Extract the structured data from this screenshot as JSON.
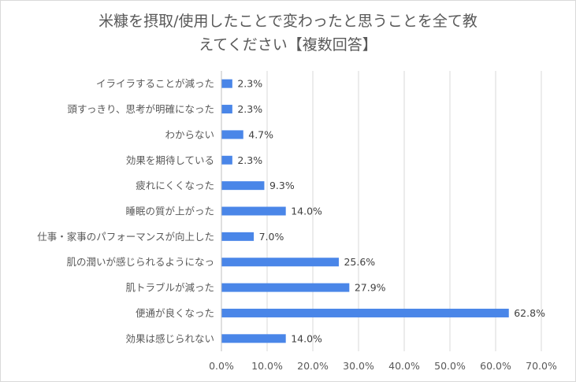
{
  "chart_data": {
    "type": "bar",
    "orientation": "horizontal",
    "title_line1": "米糠を摂取/使用したことで変わったと思うことを全て教",
    "title_line2": "えてください【複数回答】",
    "categories": [
      "イライラすることが減った",
      "頭すっきり、思考が明確になった",
      "わからない",
      "効果を期待している",
      "疲れにくくなった",
      "睡眠の質が上がった",
      "仕事・家事のパフォーマンスが向上した",
      "肌の潤いが感じられるようになっ",
      "肌トラブルが減った",
      "便通が良くなった",
      "効果は感じられない"
    ],
    "values": [
      2.3,
      2.3,
      4.7,
      2.3,
      9.3,
      14.0,
      7.0,
      25.6,
      27.9,
      62.8,
      14.0
    ],
    "value_labels": [
      "2.3%",
      "2.3%",
      "4.7%",
      "2.3%",
      "9.3%",
      "14.0%",
      "7.0%",
      "25.6%",
      "27.9%",
      "62.8%",
      "14.0%"
    ],
    "xlim": [
      0,
      70
    ],
    "xticks": [
      "0.0%",
      "10.0%",
      "20.0%",
      "30.0%",
      "40.0%",
      "50.0%",
      "60.0%",
      "70.0%"
    ],
    "grid": true,
    "bar_color": "#4a86e8"
  }
}
